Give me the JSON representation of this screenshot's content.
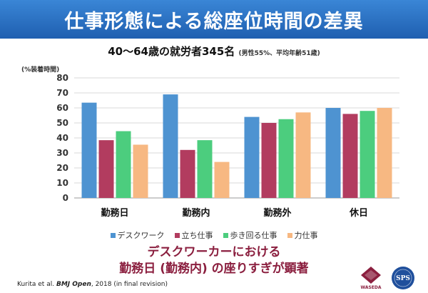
{
  "header": {
    "title": "仕事形態による総座位時間の差異"
  },
  "subtitle": {
    "main": "40～64歳の就労者345名",
    "note": "(男性55%、平均年齢51歳)"
  },
  "chart_data": {
    "type": "bar",
    "ylabel": "(%装着時間)",
    "ylim": [
      0,
      80
    ],
    "yticks": [
      0,
      10,
      20,
      30,
      40,
      50,
      60,
      70,
      80
    ],
    "categories": [
      "勤務日",
      "勤務内",
      "勤務外",
      "休日"
    ],
    "series": [
      {
        "name": "デスクワーク",
        "color": "#4e93d1",
        "values": [
          63.5,
          69,
          54,
          60
        ]
      },
      {
        "name": "立ち仕事",
        "color": "#b23c5f",
        "values": [
          38.5,
          32,
          50,
          56
        ]
      },
      {
        "name": "歩き回る仕事",
        "color": "#4ccd7e",
        "values": [
          44.5,
          38.5,
          52.5,
          58
        ]
      },
      {
        "name": "力仕事",
        "color": "#f7b882",
        "values": [
          35.5,
          24,
          57,
          60
        ]
      }
    ],
    "grid": true,
    "legend": "bottom"
  },
  "message": {
    "line1": "デスクワーカーにおける",
    "line2": "勤務日 (勤務内) の座りすぎが顕著"
  },
  "citation": {
    "authors": "Kurita et al.",
    "journal": "BMJ Open",
    "rest": ", 2018 (in final revision)"
  },
  "logos": {
    "waseda": "WASEDA",
    "sps": "SPS"
  },
  "colors": {
    "banner": "#2b72c5",
    "message": "#8b1f3f"
  }
}
